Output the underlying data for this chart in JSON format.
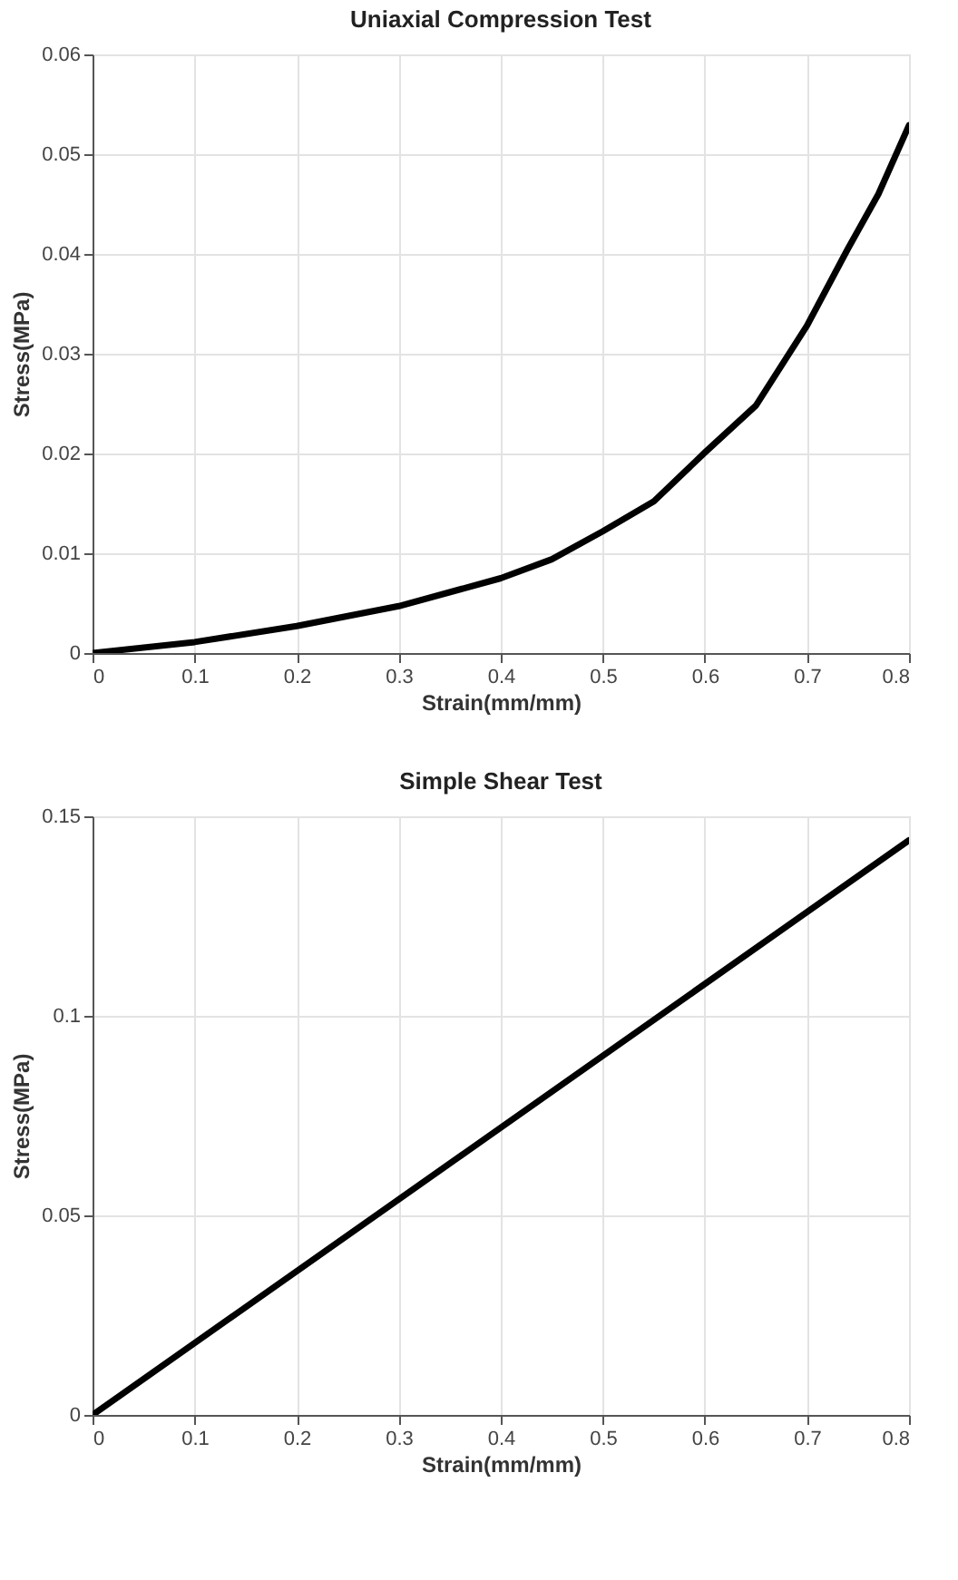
{
  "chart_data": [
    {
      "type": "line",
      "title": "Uniaxial Compression Test",
      "xlabel": "Strain(mm/mm)",
      "ylabel": "Stress(MPa)",
      "x": [
        0,
        0.1,
        0.2,
        0.3,
        0.4,
        0.45,
        0.5,
        0.55,
        0.6,
        0.65,
        0.7,
        0.74,
        0.77,
        0.8
      ],
      "series": [
        {
          "color": "#000000",
          "values": [
            0,
            0.0011,
            0.0027,
            0.0047,
            0.0075,
            0.0094,
            0.0122,
            0.0152,
            0.0201,
            0.0248,
            0.0328,
            0.0405,
            0.046,
            0.0529
          ]
        }
      ],
      "xlim": [
        0,
        0.8
      ],
      "xticks": [
        0,
        0.1,
        0.2,
        0.3,
        0.4,
        0.5,
        0.6,
        0.7,
        0.8
      ],
      "ylim": [
        0,
        0.06
      ],
      "yticks": [
        0,
        0.01,
        0.02,
        0.03,
        0.04,
        0.05,
        0.06
      ],
      "grid": true,
      "line_style": "solid"
    },
    {
      "type": "line",
      "title": "Simple Shear Test",
      "xlabel": "Strain(mm/mm)",
      "ylabel": "Stress(MPa)",
      "x": [
        0,
        0.8
      ],
      "series": [
        {
          "color": "#000000",
          "values": [
            0,
            0.144
          ]
        }
      ],
      "xlim": [
        0,
        0.8
      ],
      "xticks": [
        0,
        0.1,
        0.2,
        0.3,
        0.4,
        0.5,
        0.6,
        0.7,
        0.8
      ],
      "ylim": [
        0,
        0.15
      ],
      "yticks": [
        0,
        0.05,
        0.1,
        0.15
      ],
      "grid": true,
      "line_style": "solid"
    }
  ]
}
